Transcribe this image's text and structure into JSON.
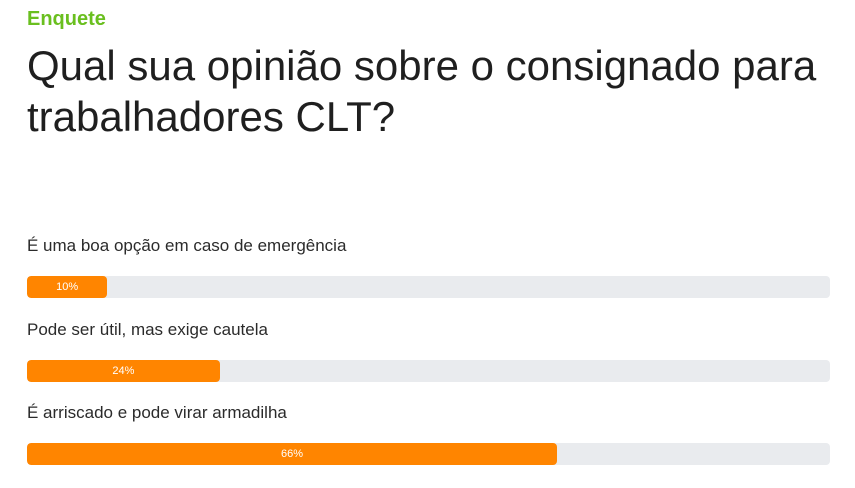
{
  "poll": {
    "kicker": "Enquete",
    "question": "Qual sua opinião sobre o consignado para trabalhadores CLT?",
    "options": [
      {
        "label": "É uma boa opção em caso de emergência",
        "percent": 10,
        "percent_label": "10%"
      },
      {
        "label": "Pode ser útil, mas exige cautela",
        "percent": 24,
        "percent_label": "24%"
      },
      {
        "label": "É arriscado e pode virar armadilha",
        "percent": 66,
        "percent_label": "66%"
      }
    ]
  },
  "colors": {
    "kicker": "#6abf1f",
    "bar_fill": "#ff8500",
    "bar_track": "#e9ebee",
    "text": "#1f1f1f"
  }
}
